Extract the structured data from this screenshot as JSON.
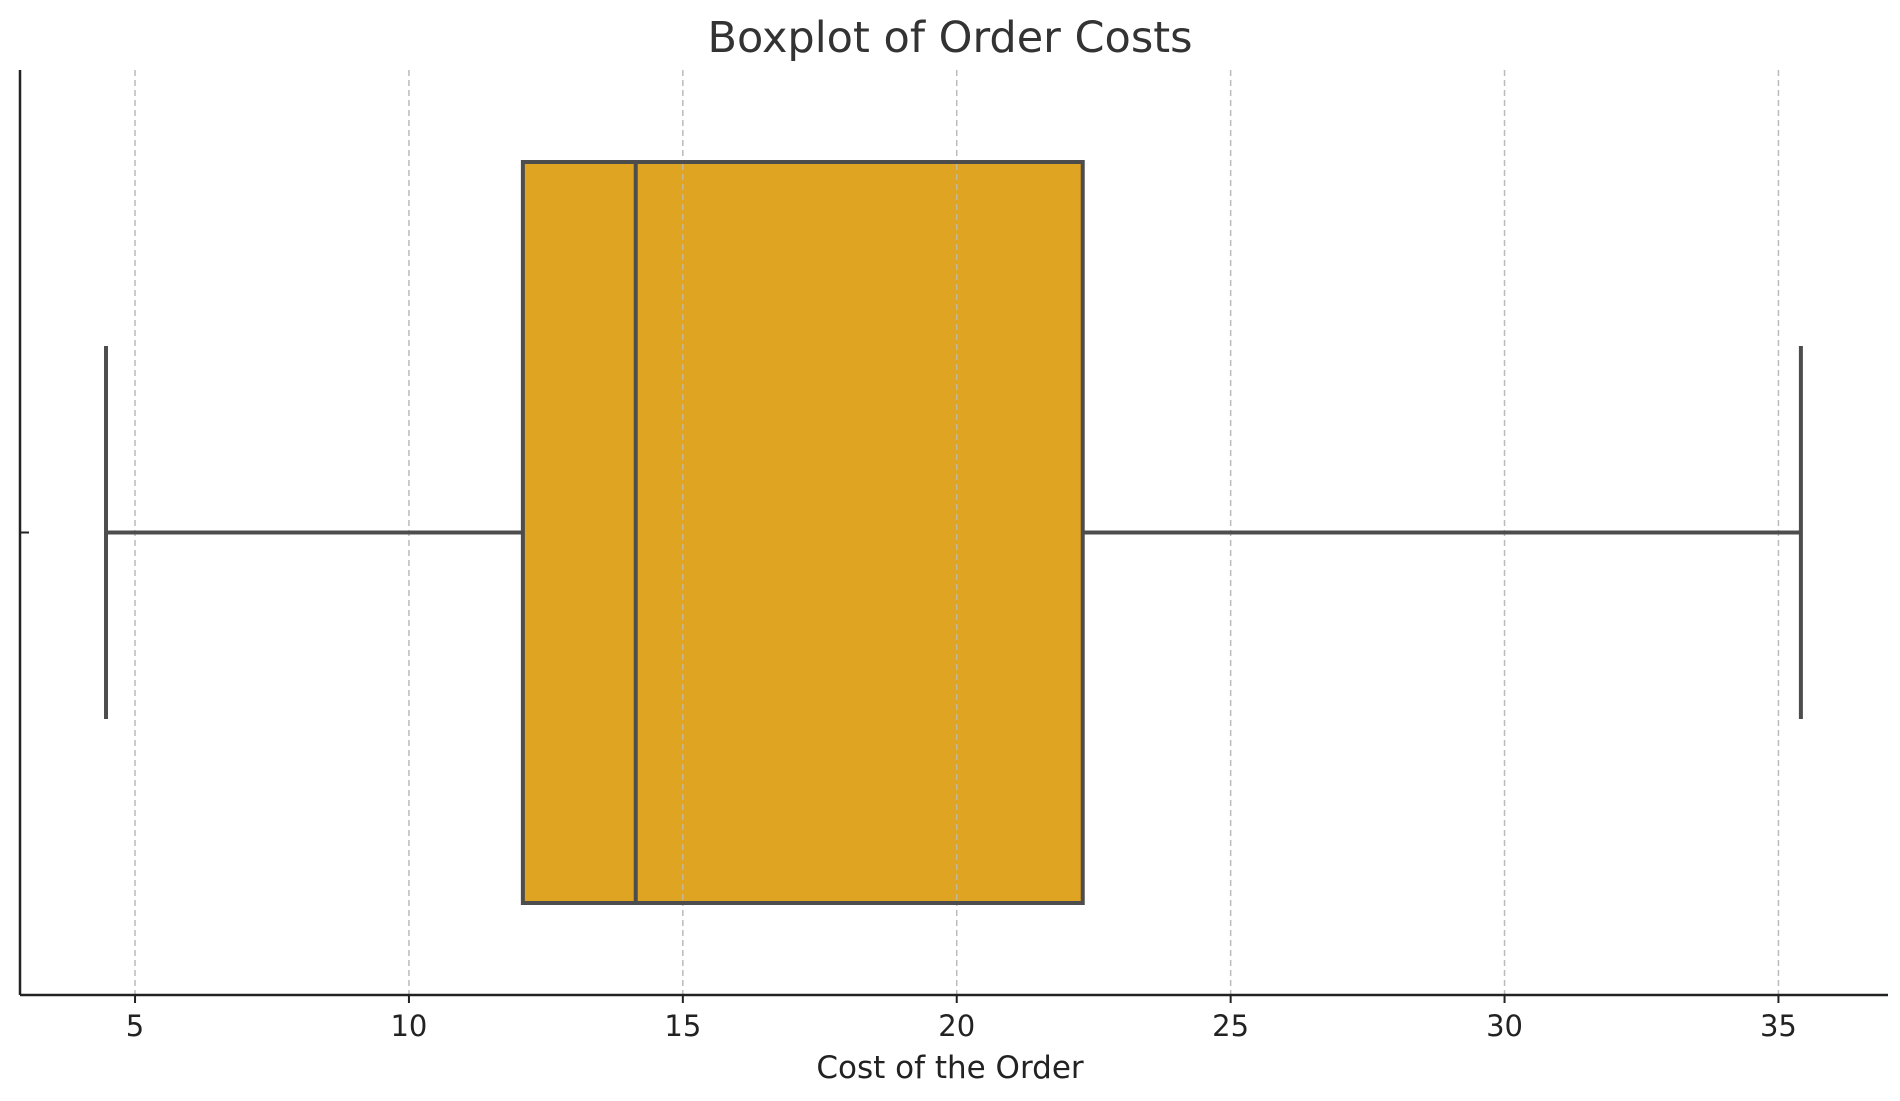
{
  "chart_data": {
    "type": "boxplot",
    "title": "Boxplot of Order Costs",
    "xlabel": "Cost of the Order",
    "ylabel": "",
    "xlim": [
      2.9,
      37.0
    ],
    "xticks": [
      5,
      10,
      15,
      20,
      25,
      30,
      35
    ],
    "grid": "vertical dashed",
    "box": {
      "whisker_low": 4.47,
      "q1": 12.08,
      "median": 14.14,
      "q3": 22.3,
      "whisker_high": 35.41
    },
    "colors": {
      "box_fill": "#DFA421",
      "line": "#4D4D4D",
      "grid": "#BBBBBB",
      "axis": "#222222"
    }
  }
}
